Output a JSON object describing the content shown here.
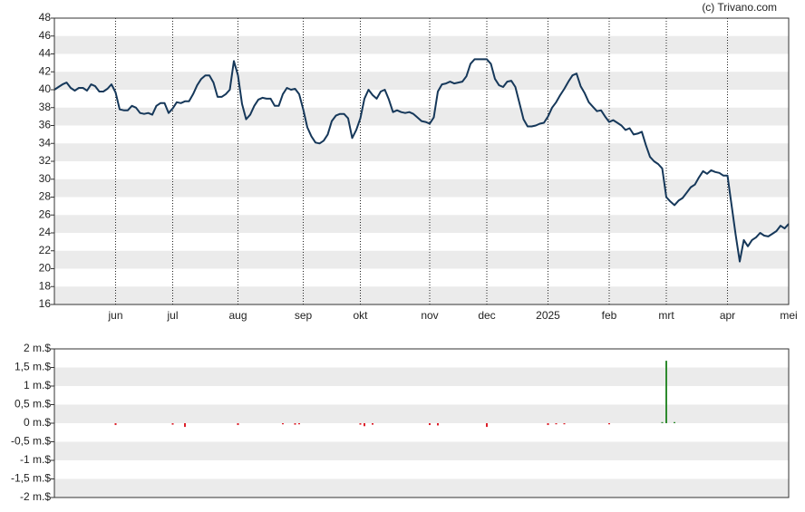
{
  "chart_data": [
    {
      "type": "line",
      "copyright": "(c) Trivano.com",
      "categories": [
        null,
        null,
        null,
        null,
        null,
        null,
        null,
        null,
        null,
        null,
        null,
        null,
        null,
        null,
        null,
        "jun",
        null,
        null,
        null,
        null,
        null,
        null,
        null,
        null,
        null,
        null,
        null,
        null,
        null,
        "jul",
        null,
        null,
        null,
        null,
        null,
        null,
        null,
        null,
        null,
        null,
        null,
        null,
        null,
        null,
        null,
        "aug",
        null,
        null,
        null,
        null,
        null,
        null,
        null,
        null,
        null,
        null,
        null,
        null,
        null,
        null,
        null,
        "sep",
        null,
        null,
        null,
        null,
        null,
        null,
        null,
        null,
        null,
        null,
        null,
        null,
        null,
        "okt",
        null,
        null,
        null,
        null,
        null,
        null,
        null,
        null,
        null,
        null,
        null,
        null,
        null,
        null,
        null,
        null,
        "nov",
        null,
        null,
        null,
        null,
        null,
        null,
        null,
        null,
        null,
        null,
        null,
        null,
        null,
        "dec",
        null,
        null,
        null,
        null,
        null,
        null,
        null,
        null,
        null,
        null,
        null,
        null,
        null,
        null,
        "2025",
        null,
        null,
        null,
        null,
        null,
        null,
        null,
        null,
        null,
        null,
        null,
        null,
        null,
        null,
        "feb",
        null,
        null,
        null,
        null,
        null,
        null,
        null,
        null,
        null,
        null,
        null,
        null,
        null,
        "mrt",
        null,
        null,
        null,
        null,
        null,
        null,
        null,
        null,
        null,
        null,
        null,
        null,
        null,
        null,
        "apr",
        null,
        null,
        null,
        null,
        null,
        null,
        null,
        null,
        null,
        null,
        null,
        null,
        null,
        null,
        "mei"
      ],
      "series": [
        {
          "color": "#16385a",
          "values": [
            40.0,
            40.3,
            40.6,
            40.8,
            40.2,
            39.9,
            40.2,
            40.2,
            39.9,
            40.6,
            40.4,
            39.8,
            39.8,
            40.1,
            40.6,
            39.7,
            37.8,
            37.7,
            37.7,
            38.2,
            38.0,
            37.4,
            37.3,
            37.4,
            37.2,
            38.2,
            38.5,
            38.5,
            37.4,
            37.9,
            38.6,
            38.5,
            38.7,
            38.7,
            39.5,
            40.5,
            41.2,
            41.6,
            41.6,
            40.8,
            39.2,
            39.2,
            39.5,
            40.0,
            43.2,
            41.6,
            38.4,
            36.7,
            37.2,
            38.2,
            38.9,
            39.1,
            39.0,
            39.0,
            38.2,
            38.2,
            39.5,
            40.2,
            40.0,
            40.1,
            39.5,
            37.8,
            35.8,
            34.8,
            34.1,
            34.0,
            34.3,
            35.0,
            36.5,
            37.1,
            37.3,
            37.3,
            36.8,
            34.6,
            35.5,
            36.8,
            39.0,
            40.0,
            39.4,
            39.0,
            39.8,
            40.0,
            38.9,
            37.5,
            37.7,
            37.5,
            37.4,
            37.5,
            37.3,
            36.9,
            36.5,
            36.4,
            36.2,
            36.9,
            39.8,
            40.6,
            40.7,
            40.9,
            40.7,
            40.8,
            40.9,
            41.5,
            42.9,
            43.4,
            43.4,
            43.4,
            43.4,
            42.9,
            41.2,
            40.5,
            40.3,
            40.9,
            41.0,
            40.3,
            38.5,
            36.7,
            35.9,
            35.9,
            36.0,
            36.2,
            36.3,
            37.0,
            38.0,
            38.6,
            39.4,
            40.1,
            40.9,
            41.6,
            41.8,
            40.4,
            39.6,
            38.6,
            38.1,
            37.6,
            37.7,
            37.0,
            36.4,
            36.6,
            36.3,
            36.0,
            35.5,
            35.7,
            35.0,
            35.1,
            35.3,
            33.8,
            32.5,
            32.0,
            31.7,
            31.2,
            28.0,
            27.5,
            27.1,
            27.6,
            27.9,
            28.5,
            29.1,
            29.4,
            30.2,
            30.9,
            30.6,
            31.0,
            30.8,
            30.7,
            30.4,
            30.4,
            27.1,
            23.8,
            20.8,
            23.2,
            22.5,
            23.2,
            23.5,
            24.0,
            23.7,
            23.6,
            23.9,
            24.2,
            24.8,
            24.5,
            25.0
          ]
        }
      ],
      "ylim": [
        16,
        48
      ],
      "yticks": [
        16,
        18,
        20,
        22,
        24,
        26,
        28,
        30,
        32,
        34,
        36,
        38,
        40,
        42,
        44,
        46,
        48
      ],
      "grid": true
    },
    {
      "type": "bar",
      "positive_color": "#2e8b2e",
      "negative_color": "#dd1f2a",
      "values": [
        0,
        0,
        0,
        0,
        0,
        0,
        0,
        0,
        0,
        0,
        0,
        0,
        0,
        0,
        0,
        -0.05,
        0,
        0,
        0,
        0,
        0,
        0,
        0,
        0,
        0,
        0,
        0,
        0,
        0,
        -0.04,
        0,
        0,
        -0.1,
        0,
        0,
        0,
        0,
        0,
        0,
        0,
        0,
        0,
        0,
        0,
        0,
        -0.05,
        0,
        0,
        0,
        0,
        0,
        0,
        0,
        0,
        0,
        0,
        -0.03,
        0,
        0,
        -0.04,
        -0.03,
        0,
        0,
        0,
        0,
        0,
        0,
        0,
        0,
        0,
        0,
        0,
        0,
        0,
        0,
        -0.04,
        -0.08,
        0,
        -0.04,
        0,
        0,
        0,
        0,
        0,
        0,
        0,
        0,
        0,
        0,
        0,
        0,
        0,
        -0.05,
        0,
        -0.06,
        0,
        0,
        0,
        0,
        0,
        0,
        0,
        0,
        0,
        0,
        0,
        -0.1,
        0,
        0,
        0,
        0,
        0,
        0,
        0,
        0,
        0,
        0,
        0,
        0,
        0,
        0,
        -0.05,
        0,
        -0.03,
        0,
        -0.03,
        0,
        0,
        0,
        0,
        0,
        0,
        0,
        0,
        0,
        0,
        -0.03,
        0,
        0,
        0,
        0,
        0,
        0,
        0,
        0,
        0,
        0,
        0,
        0,
        0.03,
        1.68,
        0,
        0.03,
        0,
        0,
        0,
        0,
        0,
        0,
        0,
        0,
        0,
        0,
        0,
        0,
        0,
        0,
        0,
        0,
        0,
        0,
        0,
        0,
        0,
        0,
        0,
        0,
        0,
        0,
        0
      ],
      "ylim": [
        -2,
        2
      ],
      "yticks": [
        {
          "value": -2,
          "label": "-2 m.$"
        },
        {
          "value": -1.5,
          "label": "-1,5 m.$"
        },
        {
          "value": -1,
          "label": "-1 m.$"
        },
        {
          "value": -0.5,
          "label": "-0,5 m.$"
        },
        {
          "value": 0,
          "label": "0 m.$"
        },
        {
          "value": 0.5,
          "label": "0,5 m.$"
        },
        {
          "value": 1,
          "label": "1 m.$"
        },
        {
          "value": 1.5,
          "label": "1,5 m.$"
        },
        {
          "value": 2,
          "label": "2 m.$"
        }
      ],
      "grid": true
    }
  ]
}
